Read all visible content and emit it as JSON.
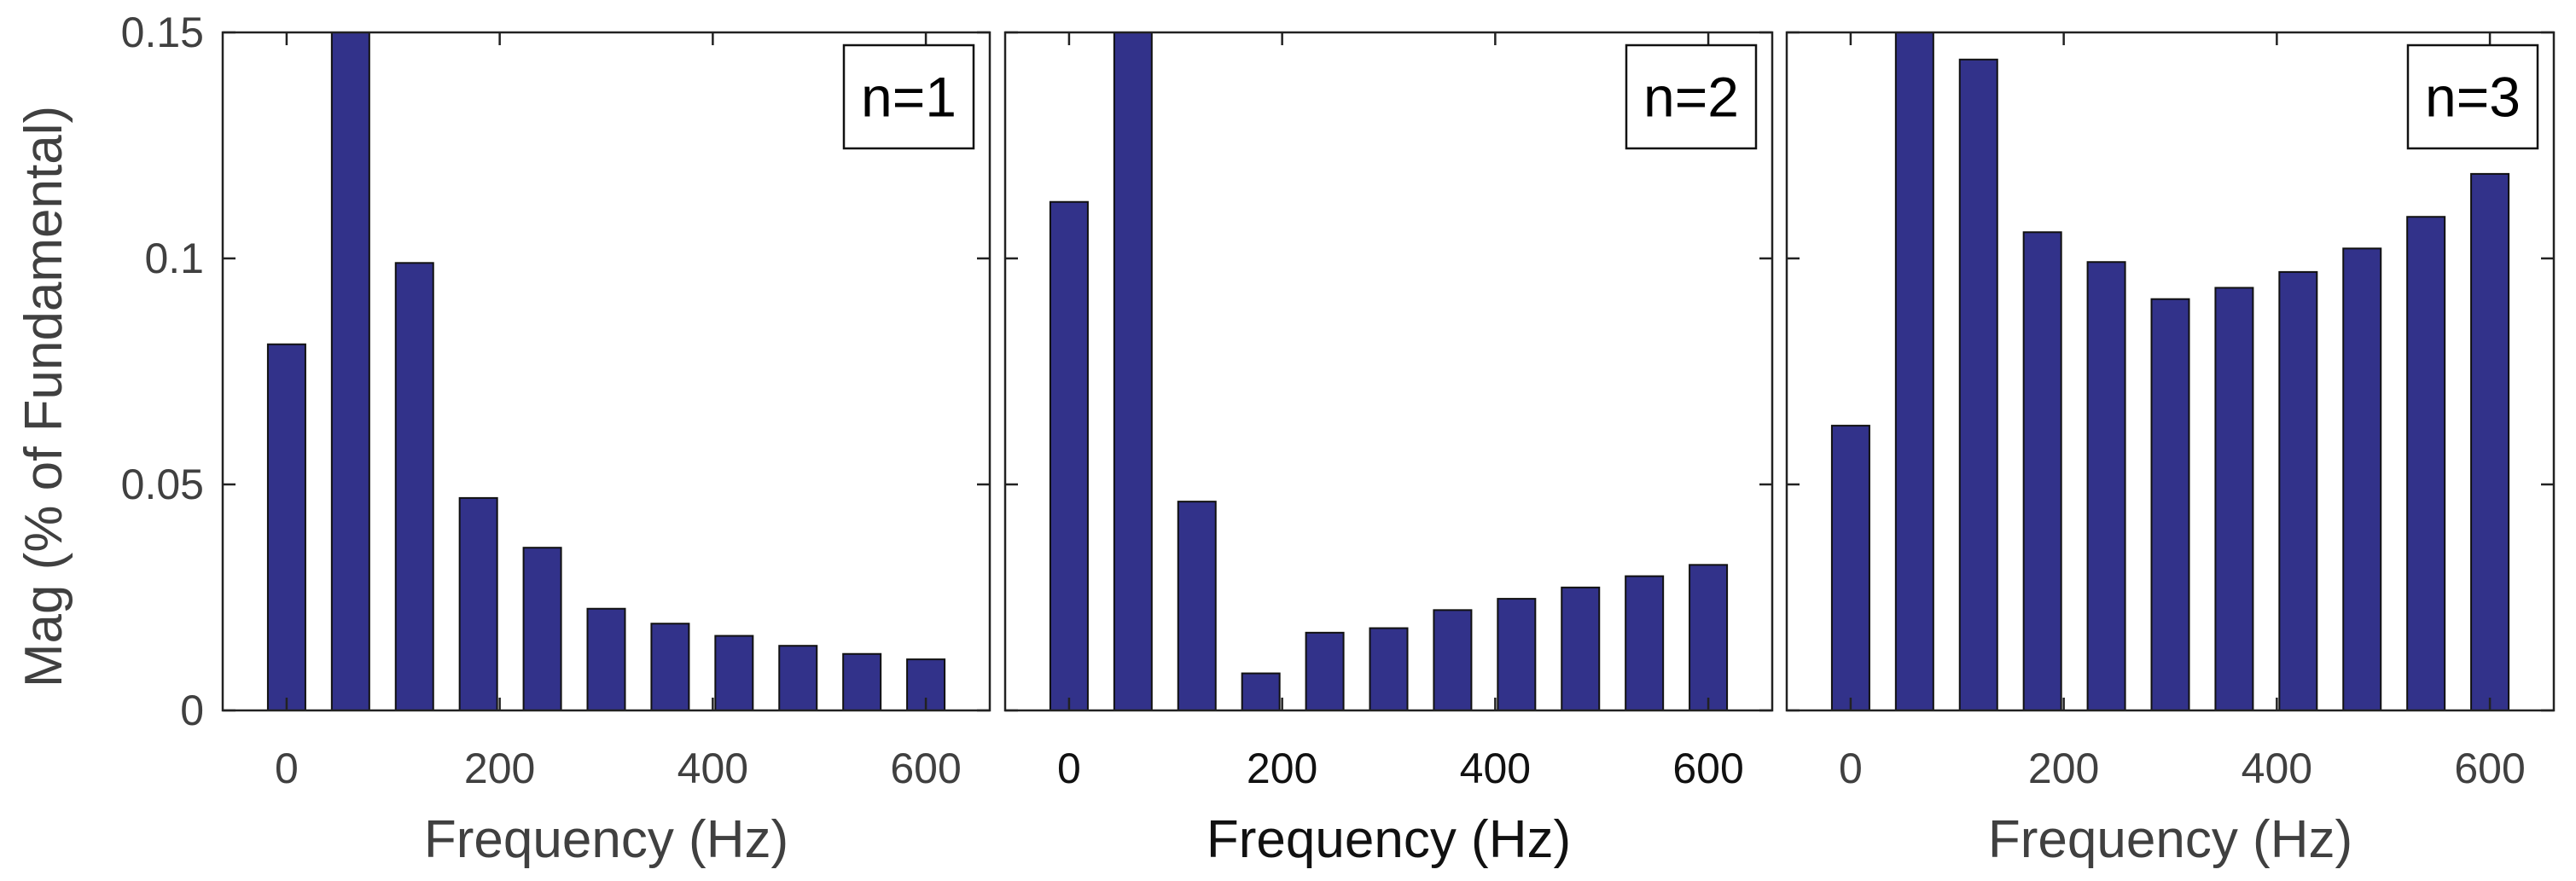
{
  "figure": {
    "ylabel": "Mag (% of Fundamental)"
  },
  "chart_data": [
    {
      "type": "bar",
      "legend": "n=1",
      "xlabel": "Frequency (Hz)",
      "ylabel": "Mag (% of Fundamental)",
      "x": [
        0,
        60,
        120,
        180,
        240,
        300,
        360,
        420,
        480,
        540,
        600
      ],
      "values": [
        0.081,
        0.15,
        0.099,
        0.047,
        0.036,
        0.0225,
        0.0192,
        0.0165,
        0.0143,
        0.0125,
        0.0113
      ],
      "xlim": [
        -60,
        660
      ],
      "ylim": [
        0,
        0.15
      ],
      "xticks": [
        0,
        200,
        400,
        600
      ],
      "yticks": [
        0,
        0.05,
        0.1,
        0.15
      ],
      "xtick_labels": [
        "0",
        "200",
        "400",
        "600"
      ],
      "ytick_labels": [
        "0",
        "0.05",
        "0.1",
        "0.15"
      ],
      "legend_position": "top-right",
      "dark_text": false
    },
    {
      "type": "bar",
      "legend": "n=2",
      "xlabel": "Frequency (Hz)",
      "ylabel": "",
      "x": [
        0,
        60,
        120,
        180,
        240,
        300,
        360,
        420,
        480,
        540,
        600
      ],
      "values": [
        0.1125,
        0.15,
        0.0462,
        0.0082,
        0.0172,
        0.0182,
        0.0222,
        0.0247,
        0.0272,
        0.0297,
        0.0322
      ],
      "xlim": [
        -60,
        660
      ],
      "ylim": [
        0,
        0.15
      ],
      "xticks": [
        0,
        200,
        400,
        600
      ],
      "yticks": [
        0,
        0.05,
        0.1,
        0.15
      ],
      "xtick_labels": [
        "0",
        "200",
        "400",
        "600"
      ],
      "ytick_labels": [],
      "legend_position": "top-right",
      "dark_text": true
    },
    {
      "type": "bar",
      "legend": "n=3",
      "xlabel": "Frequency (Hz)",
      "ylabel": "",
      "x": [
        0,
        60,
        120,
        180,
        240,
        300,
        360,
        420,
        480,
        540,
        600
      ],
      "values": [
        0.063,
        0.15,
        0.144,
        0.1058,
        0.0992,
        0.091,
        0.0935,
        0.097,
        0.1022,
        0.1092,
        0.1187
      ],
      "xlim": [
        -60,
        660
      ],
      "ylim": [
        0,
        0.15
      ],
      "xticks": [
        0,
        200,
        400,
        600
      ],
      "yticks": [
        0,
        0.05,
        0.1,
        0.15
      ],
      "xtick_labels": [
        "0",
        "200",
        "400",
        "600"
      ],
      "ytick_labels": [],
      "legend_position": "top-right",
      "dark_text": false
    }
  ]
}
